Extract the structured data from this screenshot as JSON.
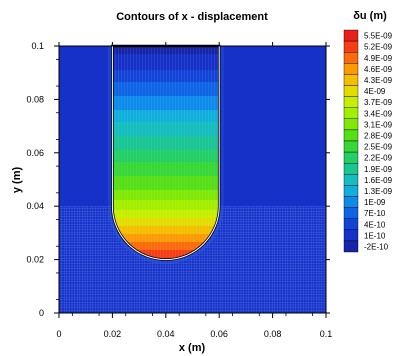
{
  "chart_data": {
    "type": "heatmap",
    "title": "Contours of x - displacement",
    "xlabel": "x (m)",
    "ylabel": "y (m)",
    "xlim": [
      0,
      0.1
    ],
    "ylim": [
      0,
      0.1
    ],
    "x_ticks": [
      "0",
      "0.02",
      "0.04",
      "0.06",
      "0.08",
      "0.1"
    ],
    "y_ticks": [
      "0",
      "0.02",
      "0.04",
      "0.06",
      "0.08",
      "0.1"
    ],
    "colorbar": {
      "title": "δu (m)",
      "levels": [
        5.5e-09,
        5.2e-09,
        4.9e-09,
        4.6e-09,
        4.3e-09,
        4e-09,
        3.7e-09,
        3.4e-09,
        3.1e-09,
        2.8e-09,
        2.5e-09,
        2.2e-09,
        1.9e-09,
        1.6e-09,
        1.3e-09,
        1e-09,
        7e-10,
        4e-10,
        1e-10,
        -2e-10
      ],
      "labels": [
        "5.5E-09",
        "5.2E-09",
        "4.9E-09",
        "4.6E-09",
        "4.3E-09",
        "4E-09",
        "3.7E-09",
        "3.4E-09",
        "3.1E-09",
        "2.8E-09",
        "2.5E-09",
        "2.2E-09",
        "1.9E-09",
        "1.6E-09",
        "1.3E-09",
        "1E-09",
        "7E-10",
        "4E-10",
        "1E-10",
        "-2E-10"
      ],
      "colors": [
        "#e8201c",
        "#f43f16",
        "#fb6a0c",
        "#fb9a05",
        "#f3bf00",
        "#e3dc00",
        "#c6ef00",
        "#a4ee00",
        "#7fe804",
        "#56de16",
        "#36d737",
        "#22ce66",
        "#1ac594",
        "#14bdbe",
        "#10aedd",
        "#0c8bea",
        "#0d64e4",
        "#1344d8",
        "#1631c8",
        "#1524a8"
      ]
    },
    "geometry": {
      "channel_x": [
        0.02,
        0.06
      ],
      "channel_center": [
        0.04,
        0.04
      ],
      "channel_radius": 0.02,
      "channel_top_y": 0.1,
      "mesh_refinement_top_y": 0.04
    },
    "displacement_profile": {
      "y": [
        0.02,
        0.025,
        0.03,
        0.035,
        0.04,
        0.045,
        0.05,
        0.055,
        0.06,
        0.065,
        0.07,
        0.075,
        0.08,
        0.085,
        0.09,
        0.095,
        0.1
      ],
      "value": [
        5.5e-09,
        5.1e-09,
        4.6e-09,
        4.1e-09,
        3.6e-09,
        3.2e-09,
        2.9e-09,
        2.6e-09,
        2.3e-09,
        2e-09,
        1.7e-09,
        1.4e-09,
        1.1e-09,
        8e-10,
        5e-10,
        2e-10,
        0
      ]
    }
  }
}
